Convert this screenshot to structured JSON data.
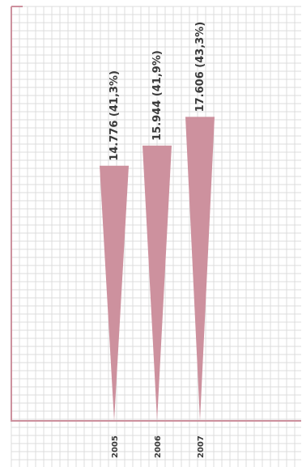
{
  "chart_data": {
    "type": "bar",
    "orientation": "vertical-tapered",
    "categories": [
      "2005",
      "2006",
      "2007"
    ],
    "values": [
      14776,
      15944,
      17606
    ],
    "labels": [
      "14.776 (41,3%)",
      "15.944 (41,9%)",
      "17.606 (43,3%)"
    ],
    "ylim": [
      0,
      24000
    ],
    "grid": true,
    "colors": {
      "bar": "#cd919e",
      "axis": "#cd919e",
      "grid": "#dcdcdc",
      "text": "#3a3a3a"
    }
  }
}
